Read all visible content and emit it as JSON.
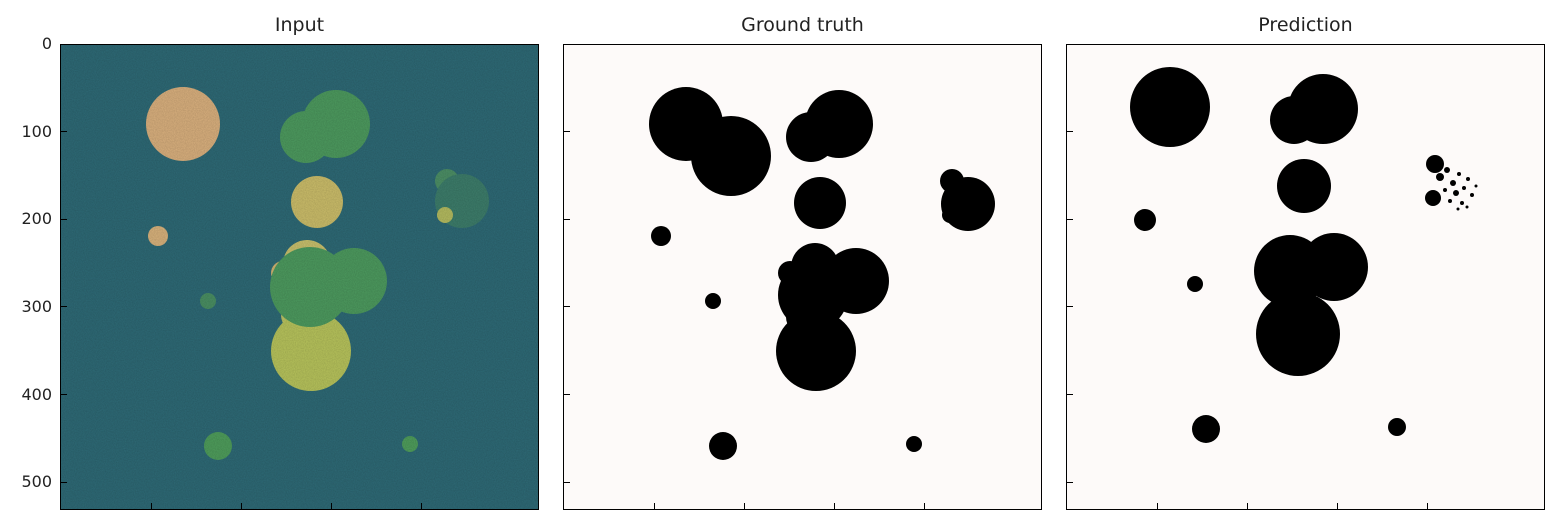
{
  "panels": [
    {
      "title": "Input",
      "style": "input"
    },
    {
      "title": "Ground truth",
      "style": "mask"
    },
    {
      "title": "Prediction",
      "style": "mask"
    }
  ],
  "y_ticks": [
    "0",
    "100",
    "200",
    "300",
    "400",
    "500"
  ],
  "colors": {
    "input_background": "#2f6a76",
    "mask_background": "#fdfaf9",
    "mask_foreground": "#000000",
    "frame": "#000000"
  }
}
